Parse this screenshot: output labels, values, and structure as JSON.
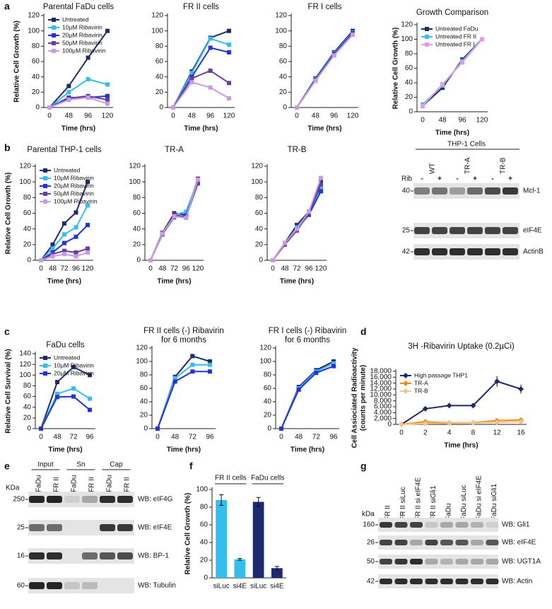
{
  "panel_labels": [
    "a",
    "b",
    "c",
    "d",
    "e",
    "f",
    "g"
  ],
  "chart_data": [
    {
      "type": "line",
      "title": "Parental FaDu cells",
      "x_label": "Time (hrs)",
      "y_label": "Relative Cell Growth (%)",
      "categories": [
        "0",
        "48",
        "96",
        "120"
      ],
      "ylim": [
        0,
        120
      ],
      "yticks": [
        0,
        20,
        40,
        60,
        80,
        100,
        120
      ],
      "legend": "upper left",
      "marker": "square",
      "series": [
        {
          "name": "Untreated",
          "color": "#1d2b6e",
          "values": [
            0,
            28,
            65,
            100
          ]
        },
        {
          "name": "10µM Ribavirin",
          "color": "#35bdf0",
          "values": [
            0,
            20,
            37,
            30
          ]
        },
        {
          "name": "20µM Ribavirin",
          "color": "#2233dd",
          "values": [
            0,
            13,
            13,
            15
          ]
        },
        {
          "name": "50µM Ribavirin",
          "color": "#6b3d9e",
          "values": [
            0,
            12,
            15,
            10
          ]
        },
        {
          "name": "100µM Ribavirin",
          "color": "#c89be3",
          "values": [
            0,
            10,
            13,
            5
          ]
        }
      ]
    },
    {
      "type": "line",
      "title": "FR II cells",
      "x_label": "Time (hrs)",
      "categories": [
        "0",
        "48",
        "96",
        "120"
      ],
      "ylim": [
        0,
        120
      ],
      "yticks": [
        0,
        20,
        40,
        60,
        80,
        100,
        120
      ],
      "marker": "square",
      "series": [
        {
          "color": "#1d2b6e",
          "values": [
            0,
            47,
            91,
            100
          ]
        },
        {
          "color": "#35bdf0",
          "values": [
            0,
            45,
            90,
            82
          ]
        },
        {
          "color": "#2233dd",
          "values": [
            0,
            40,
            78,
            72
          ]
        },
        {
          "color": "#6b3d9e",
          "values": [
            0,
            38,
            48,
            32
          ]
        },
        {
          "color": "#c89be3",
          "values": [
            0,
            33,
            26,
            12
          ]
        }
      ]
    },
    {
      "type": "line",
      "title": "FR I cells",
      "x_label": "Time (hrs)",
      "categories": [
        "0",
        "48",
        "96",
        "120"
      ],
      "ylim": [
        0,
        120
      ],
      "yticks": [
        0,
        20,
        40,
        60,
        80,
        100,
        120
      ],
      "marker": "square",
      "series": [
        {
          "color": "#1d2b6e",
          "values": [
            0,
            38,
            72,
            100
          ]
        },
        {
          "color": "#35bdf0",
          "values": [
            0,
            37,
            71,
            98
          ]
        },
        {
          "color": "#2233dd",
          "values": [
            0,
            36,
            70,
            97
          ]
        },
        {
          "color": "#6b3d9e",
          "values": [
            0,
            35,
            69,
            96
          ]
        },
        {
          "color": "#c89be3",
          "values": [
            0,
            35,
            68,
            95
          ]
        }
      ]
    },
    {
      "type": "line",
      "title": "Growth Comparison",
      "x_label": "Time (hrs)",
      "y_label": "Relative Cell Growth (%)",
      "categories": [
        "0",
        "48",
        "96",
        "120"
      ],
      "ylim": [
        0,
        120
      ],
      "yticks": [
        0,
        20,
        40,
        60,
        80,
        100,
        120
      ],
      "legend": "upper left",
      "marker": "square",
      "series": [
        {
          "name": "Untreated FaDu",
          "color": "#1d2b6e",
          "values": [
            8,
            33,
            72,
            100
          ]
        },
        {
          "name": "Untreated FR II",
          "color": "#35bdf0",
          "values": [
            10,
            36,
            70,
            100
          ]
        },
        {
          "name": "Untreated FR I",
          "color": "#e59ae5",
          "values": [
            8,
            38,
            68,
            100
          ]
        }
      ]
    },
    {
      "type": "line",
      "title": "Parental THP-1 cells",
      "x_label": "Time (hrs)",
      "y_label": "Relative Cell Growth (%)",
      "categories": [
        "0",
        "48",
        "72",
        "96",
        "120"
      ],
      "ylim": [
        0,
        120
      ],
      "yticks": [
        0,
        20,
        40,
        60,
        80,
        100,
        120
      ],
      "legend": "upper left",
      "marker": "square",
      "series": [
        {
          "name": "Untreated",
          "color": "#1d2b6e",
          "values": [
            0,
            20,
            47,
            61,
            100
          ]
        },
        {
          "name": "10µM Ribavirin",
          "color": "#35bdf0",
          "values": [
            0,
            15,
            33,
            42,
            70
          ]
        },
        {
          "name": "20µM Ribavirin",
          "color": "#2233dd",
          "values": [
            0,
            10,
            22,
            30,
            45
          ]
        },
        {
          "name": "50µM Ribavirin",
          "color": "#6b3d9e",
          "values": [
            0,
            8,
            12,
            10,
            15
          ]
        },
        {
          "name": "100µM Ribavirin",
          "color": "#c89be3",
          "values": [
            0,
            5,
            8,
            5,
            10
          ]
        }
      ]
    },
    {
      "type": "line",
      "title": "TR-A",
      "x_label": "Time (hrs)",
      "categories": [
        "0",
        "48",
        "72",
        "96",
        "120"
      ],
      "ylim": [
        0,
        120
      ],
      "yticks": [
        0,
        20,
        40,
        60,
        80,
        100,
        120
      ],
      "marker": "square",
      "series": [
        {
          "color": "#1d2b6e",
          "values": [
            0,
            35,
            60,
            58,
            104
          ]
        },
        {
          "color": "#35bdf0",
          "values": [
            0,
            34,
            58,
            62,
            102
          ]
        },
        {
          "color": "#2233dd",
          "values": [
            0,
            33,
            55,
            57,
            100
          ]
        },
        {
          "color": "#6b3d9e",
          "values": [
            0,
            35,
            58,
            55,
            98
          ]
        },
        {
          "color": "#c89be3",
          "values": [
            0,
            34,
            56,
            54,
            103
          ]
        }
      ]
    },
    {
      "type": "line",
      "title": "TR-B",
      "x_label": "Time (hrs)",
      "categories": [
        "0",
        "48",
        "72",
        "96",
        "120"
      ],
      "ylim": [
        0,
        120
      ],
      "yticks": [
        0,
        20,
        40,
        60,
        80,
        100,
        120
      ],
      "marker": "square",
      "series": [
        {
          "color": "#1d2b6e",
          "values": [
            0,
            22,
            45,
            62,
            100
          ]
        },
        {
          "color": "#35bdf0",
          "values": [
            0,
            20,
            42,
            60,
            92
          ]
        },
        {
          "color": "#2233dd",
          "values": [
            0,
            21,
            40,
            58,
            88
          ]
        },
        {
          "color": "#6b3d9e",
          "values": [
            0,
            20,
            38,
            60,
            97
          ]
        },
        {
          "color": "#c89be3",
          "values": [
            0,
            22,
            40,
            62,
            105
          ]
        }
      ]
    },
    {
      "type": "line",
      "title": "FaDu cells",
      "x_label": "Time (hrs)",
      "y_label": "Relative Cell Survival (%)",
      "categories": [
        "0",
        "48",
        "72",
        "96"
      ],
      "ylim": [
        0,
        140
      ],
      "yticks": [
        0,
        20,
        40,
        60,
        80,
        100,
        120,
        140
      ],
      "legend": "upper left",
      "marker": "square",
      "series": [
        {
          "name": "Untreated",
          "color": "#1d2b6e",
          "values": [
            0,
            87,
            115,
            100
          ]
        },
        {
          "name": "10µM Ribavirin",
          "color": "#35bdf0",
          "values": [
            0,
            65,
            75,
            56
          ]
        },
        {
          "name": "20µM Ribavirin",
          "color": "#2233dd",
          "values": [
            0,
            59,
            60,
            35
          ]
        }
      ]
    },
    {
      "type": "line",
      "title": [
        "FR II cells (-) Ribavirin",
        "for 6 months"
      ],
      "x_label": "Time (hrs)",
      "categories": [
        "0",
        "48",
        "72",
        "96"
      ],
      "ylim": [
        0,
        120
      ],
      "yticks": [
        0,
        20,
        40,
        60,
        80,
        100,
        120
      ],
      "marker": "square",
      "series": [
        {
          "color": "#1d2b6e",
          "values": [
            0,
            77,
            108,
            100
          ]
        },
        {
          "color": "#35bdf0",
          "values": [
            0,
            75,
            95,
            95
          ]
        },
        {
          "color": "#2233dd",
          "values": [
            0,
            70,
            85,
            85
          ]
        }
      ]
    },
    {
      "type": "line",
      "title": [
        "FR I cells (-) Ribavirin",
        "for 6 months"
      ],
      "x_label": "Time (hrs)",
      "categories": [
        "0",
        "48",
        "72",
        "96"
      ],
      "ylim": [
        0,
        120
      ],
      "yticks": [
        0,
        20,
        40,
        60,
        80,
        100,
        120
      ],
      "marker": "square",
      "series": [
        {
          "color": "#1d2b6e",
          "values": [
            0,
            62,
            87,
            100
          ]
        },
        {
          "color": "#35bdf0",
          "values": [
            0,
            60,
            85,
            97
          ]
        },
        {
          "color": "#2233dd",
          "values": [
            0,
            58,
            83,
            93
          ]
        }
      ]
    },
    {
      "type": "line",
      "title": "3H -Ribavirin Uptake (0.2µCi)",
      "x_label": "Time (hrs)",
      "y_label": [
        "Cell Assiociated Radioactivity",
        "(counts per minute)"
      ],
      "categories": [
        "0",
        "2",
        "4",
        "8",
        "12",
        "16"
      ],
      "ylim": [
        0,
        18000
      ],
      "yticks": [
        0,
        {
          "value": 2000,
          "label": "2,000"
        },
        {
          "value": 4000,
          "label": "4,000"
        },
        {
          "value": 6000,
          "label": "6,000"
        },
        {
          "value": 8000,
          "label": "8,000"
        },
        {
          "value": 10000,
          "label": "10,000"
        },
        {
          "value": 12000,
          "label": "12,000"
        },
        {
          "value": 14000,
          "label": "14,000"
        },
        {
          "value": 16000,
          "label": "16,000"
        },
        {
          "value": 18000,
          "label": "18,000"
        }
      ],
      "legend": "upper left",
      "marker": "diamond",
      "series": [
        {
          "name": "High passage THP1",
          "color": "#1d2b6e",
          "values": [
            0,
            5300,
            6400,
            6400,
            14600,
            12000
          ],
          "errors": [
            0,
            300,
            300,
            300,
            1800,
            1500
          ]
        },
        {
          "name": "TR-A",
          "color": "#f08a1c",
          "values": [
            0,
            900,
            500,
            600,
            1300,
            1500
          ]
        },
        {
          "name": "TR-B",
          "color": "#f5c48a",
          "values": [
            0,
            300,
            400,
            500,
            700,
            900
          ]
        }
      ]
    },
    {
      "type": "bar",
      "y_label": "Relative Cell Growth (%)",
      "group_labels": [
        "FR II cells",
        "FaDu cells"
      ],
      "categories": [
        "siLuc",
        "si4E",
        "siLuc",
        "si4E"
      ],
      "values": [
        88,
        21,
        86,
        11
      ],
      "errors": [
        6,
        1,
        5,
        2
      ],
      "colors": [
        "#35bdf0",
        "#35bdf0",
        "#1d2b6e",
        "#1d2b6e"
      ],
      "ylim": [
        0,
        100
      ],
      "yticks": [
        0,
        20,
        40,
        60,
        80,
        100
      ]
    }
  ],
  "blot_b": {
    "title": "THP-1 Cells",
    "lanes": [
      "WT",
      "TR-A",
      "TR-B"
    ],
    "treatment_label": "Rib",
    "treatments": [
      "-",
      "+",
      "-",
      "+",
      "-",
      "+"
    ],
    "rows": [
      {
        "kda": "40",
        "label": "Mcl-1"
      },
      {
        "kda": "25",
        "label": "eIF4E"
      },
      {
        "kda": "42",
        "label": "ActinB"
      }
    ]
  },
  "blot_e": {
    "unit": "KDa",
    "groups": [
      "Input",
      "Sn",
      "Cap"
    ],
    "lanes": [
      "FaDu",
      "FR II",
      "FaDu",
      "FR II",
      "FaDu",
      "FR II"
    ],
    "rows": [
      {
        "kda": "250",
        "label": "WB: eIF4G"
      },
      {
        "kda": "25",
        "label": "WB: eIF4E"
      },
      {
        "kda": "16",
        "label": "WB: BP-1"
      },
      {
        "kda": "60",
        "label": "WB: Tubulin"
      }
    ]
  },
  "blot_g": {
    "unit": "kDa",
    "lanes": [
      "FR II",
      "FR II siLuc",
      "FR II si eIF4E",
      "FR II siGli1",
      "FaDu",
      "FaDu siLuc",
      "FaDu si eIF4E",
      "FaDu siGli1"
    ],
    "rows": [
      {
        "kda": "160",
        "label": "WB: Gli1"
      },
      {
        "kda": "26",
        "label": "WB: eIF4E"
      },
      {
        "kda": "50",
        "label": "WB: UGT1A"
      },
      {
        "kda": "42",
        "label": "WB: Actin"
      }
    ]
  }
}
